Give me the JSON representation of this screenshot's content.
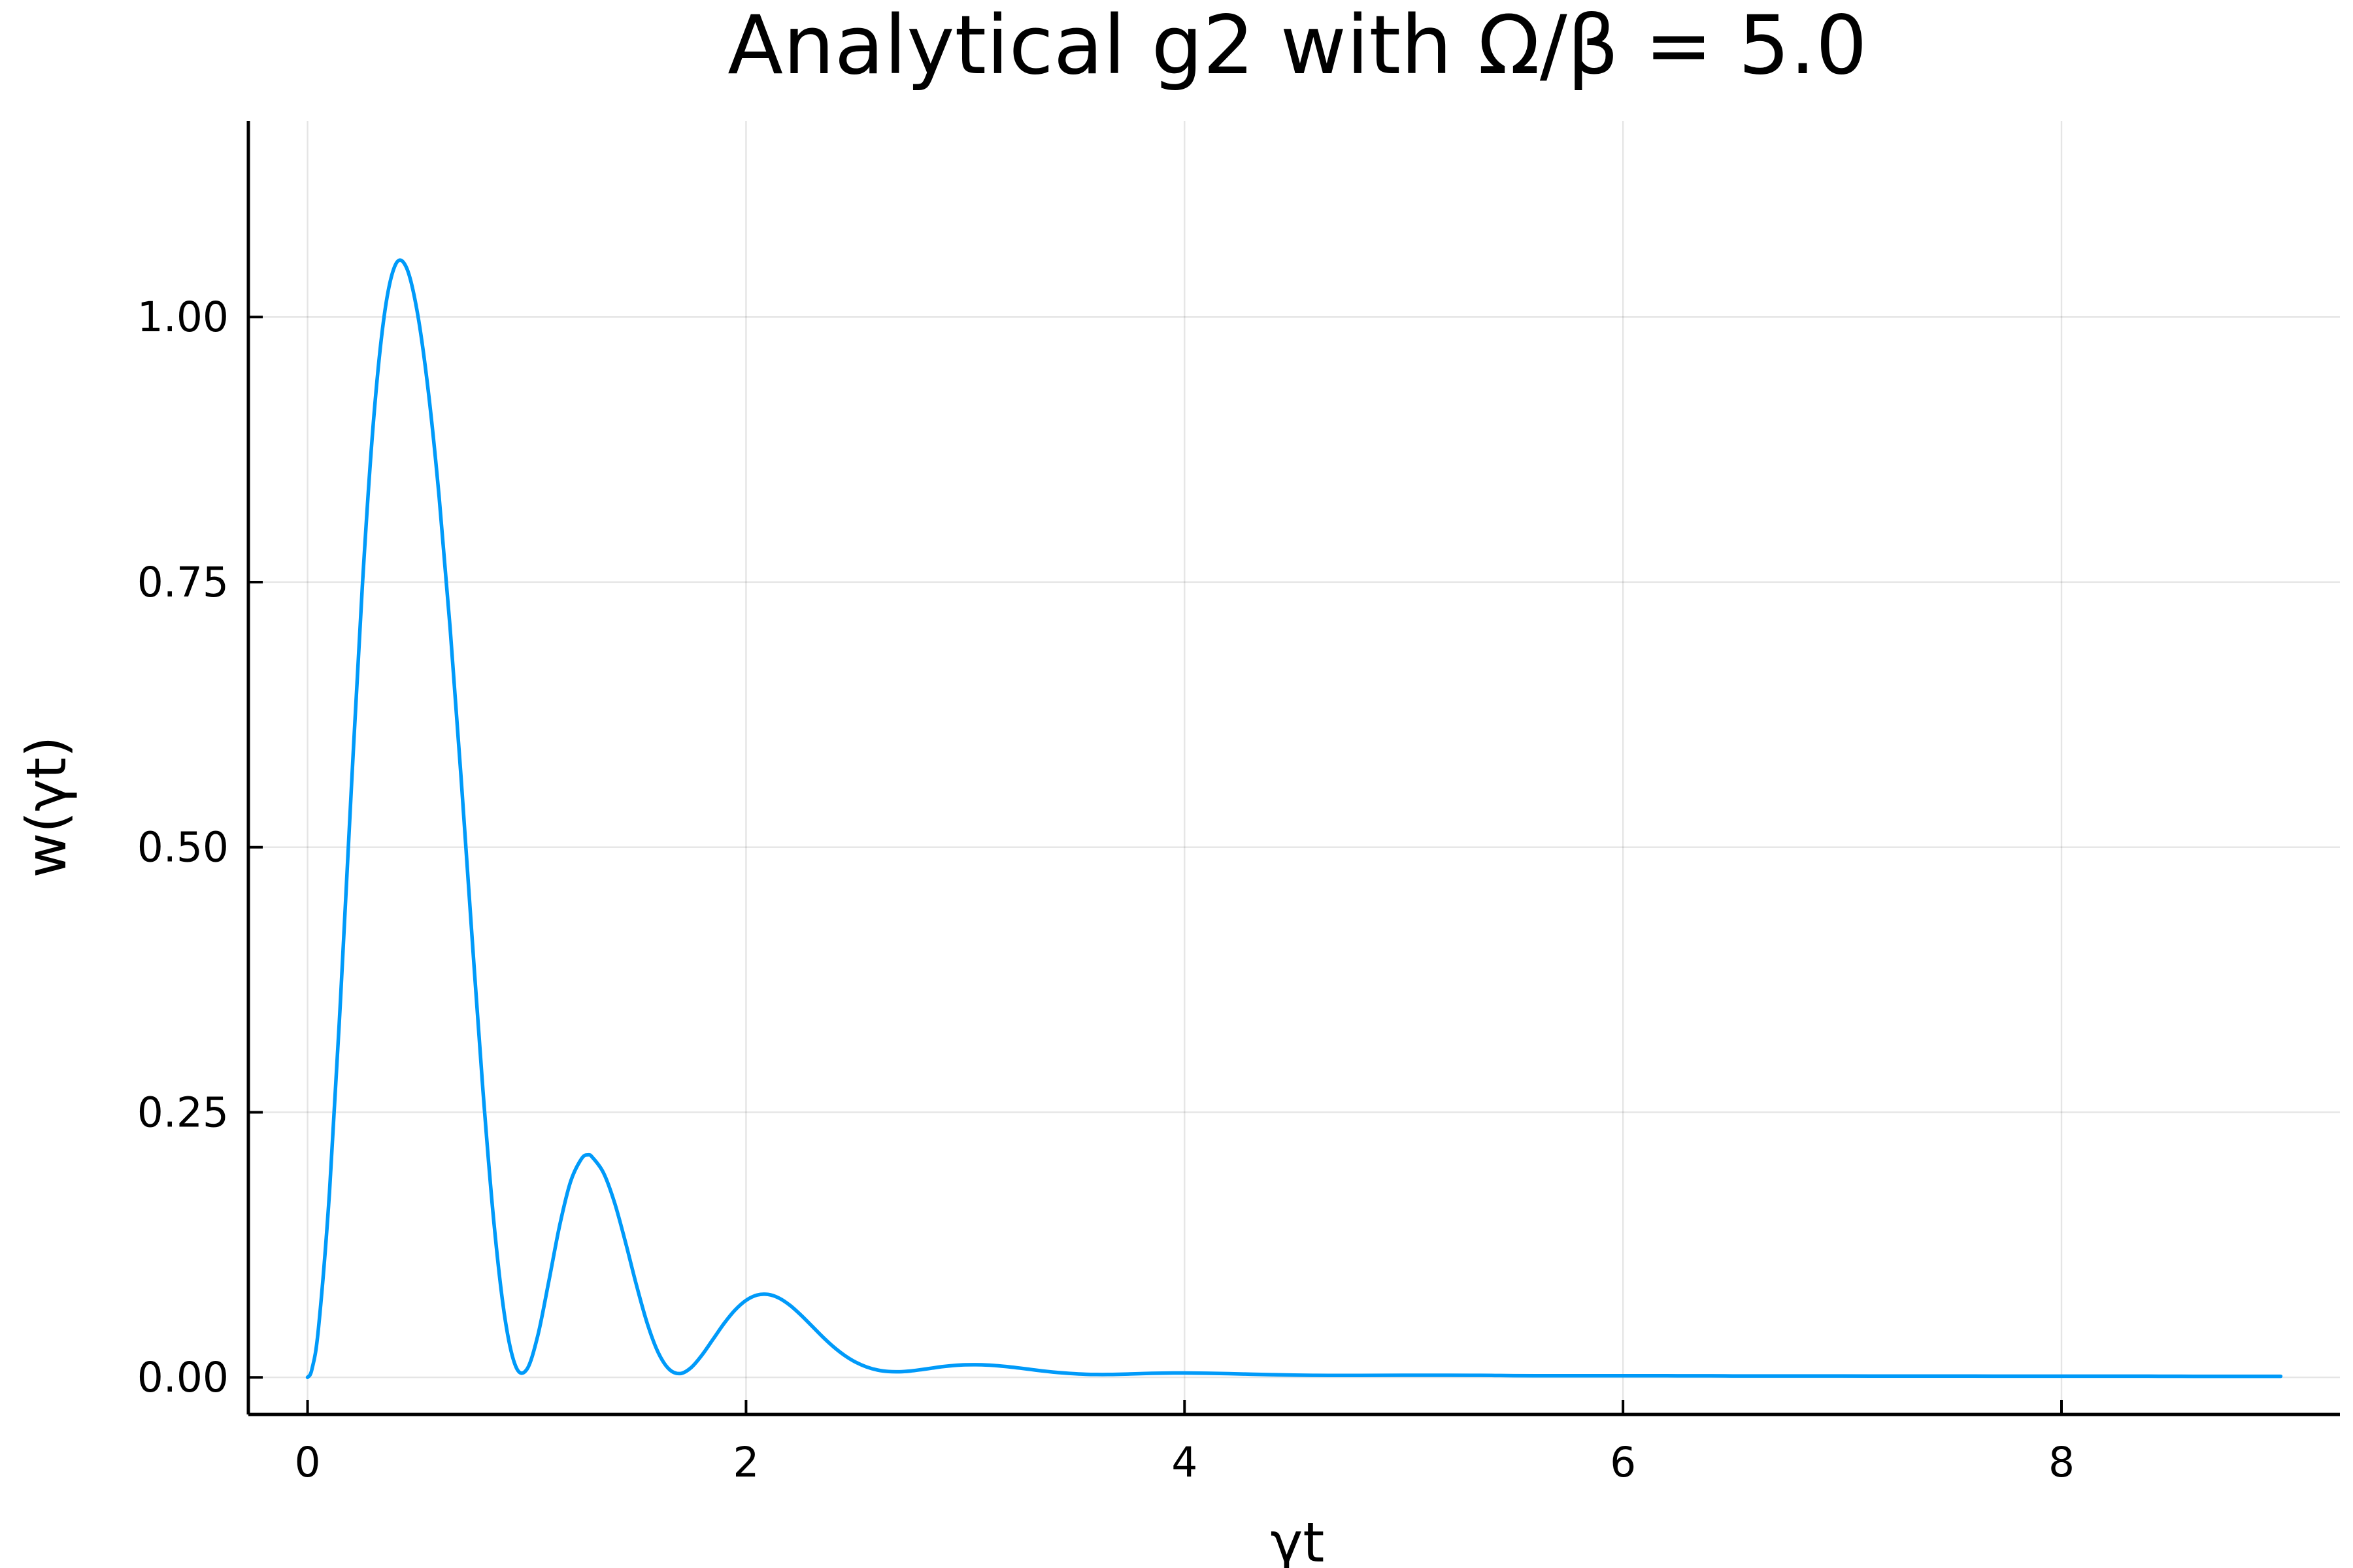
{
  "chart_data": {
    "type": "line",
    "title": "Analytical g2 with Ω/β = 5.0",
    "xlabel": "γt",
    "ylabel": "w(γt)",
    "xlim": [
      -0.27,
      9.27
    ],
    "ylim": [
      -0.035,
      1.185
    ],
    "grid": true,
    "legend": "none",
    "x_ticks": [
      {
        "value": 0,
        "label": "0"
      },
      {
        "value": 2,
        "label": "2"
      },
      {
        "value": 4,
        "label": "4"
      },
      {
        "value": 6,
        "label": "6"
      },
      {
        "value": 8,
        "label": "8"
      }
    ],
    "y_ticks": [
      {
        "value": 0.0,
        "label": "0.00"
      },
      {
        "value": 0.25,
        "label": "0.25"
      },
      {
        "value": 0.5,
        "label": "0.50"
      },
      {
        "value": 0.75,
        "label": "0.75"
      },
      {
        "value": 1.0,
        "label": "1.00"
      }
    ],
    "series": [
      {
        "color": "#009af9",
        "x": [
          0.0,
          0.02,
          0.05,
          0.1,
          0.15,
          0.2,
          0.25,
          0.3,
          0.35,
          0.4,
          0.45,
          0.5,
          0.55,
          0.6,
          0.65,
          0.7,
          0.75,
          0.8,
          0.85,
          0.9,
          0.95,
          1.0,
          1.05,
          1.1,
          1.15,
          1.2,
          1.25,
          1.28,
          1.3,
          1.35,
          1.4,
          1.45,
          1.5,
          1.55,
          1.6,
          1.65,
          1.7,
          1.75,
          1.8,
          1.85,
          1.9,
          1.95,
          2.0,
          2.05,
          2.1,
          2.15,
          2.2,
          2.25,
          2.3,
          2.35,
          2.4,
          2.45,
          2.5,
          2.55,
          2.6,
          2.65,
          2.7,
          2.75,
          2.8,
          2.85,
          2.9,
          2.95,
          3.0,
          3.05,
          3.1,
          3.15,
          3.2,
          3.25,
          3.3,
          3.35,
          3.4,
          3.45,
          3.5,
          3.55,
          3.6,
          3.65,
          3.7,
          3.75,
          3.8,
          3.85,
          3.9,
          3.95,
          4.0,
          4.1,
          4.2,
          4.3,
          4.4,
          4.5,
          4.6,
          4.7,
          4.8,
          4.9,
          5.0,
          5.1,
          5.2,
          5.3,
          5.4,
          5.5,
          5.6,
          5.7,
          5.8,
          5.9,
          6.0,
          6.1,
          6.2,
          6.3,
          6.4,
          6.5,
          6.6,
          6.7,
          6.8,
          6.9,
          7.0,
          7.2,
          7.4,
          7.6,
          7.8,
          8.0,
          8.2,
          8.4,
          8.6,
          8.8,
          9.0
        ],
        "y": [
          0.0,
          0.0077,
          0.0468,
          0.1746,
          0.3552,
          0.5566,
          0.7467,
          0.9001,
          1.0018,
          1.0489,
          1.0471,
          1.0052,
          0.9312,
          0.8305,
          0.7072,
          0.5662,
          0.4158,
          0.2704,
          0.1459,
          0.0562,
          0.0101,
          0.0075,
          0.0393,
          0.0902,
          0.1434,
          0.1848,
          0.2063,
          0.2098,
          0.2073,
          0.1928,
          0.1649,
          0.1275,
          0.0871,
          0.0505,
          0.0231,
          0.0075,
          0.0036,
          0.0093,
          0.0213,
          0.0361,
          0.0509,
          0.0635,
          0.0726,
          0.0776,
          0.0782,
          0.0748,
          0.068,
          0.0588,
          0.0485,
          0.0381,
          0.0286,
          0.0206,
          0.0143,
          0.0098,
          0.0069,
          0.0055,
          0.0053,
          0.006,
          0.0073,
          0.0088,
          0.0102,
          0.0112,
          0.0118,
          0.0119,
          0.0116,
          0.0109,
          0.0099,
          0.0087,
          0.0074,
          0.0061,
          0.005,
          0.0041,
          0.0034,
          0.0029,
          0.0027,
          0.0027,
          0.0029,
          0.0032,
          0.0035,
          0.0038,
          0.004,
          0.0041,
          0.0041,
          0.0039,
          0.0035,
          0.003,
          0.0025,
          0.0021,
          0.0019,
          0.0018,
          0.0018,
          0.0019,
          0.002,
          0.002,
          0.002,
          0.0019,
          0.0018,
          0.0016,
          0.0015,
          0.0015,
          0.0015,
          0.0015,
          0.0015,
          0.0015,
          0.0015,
          0.0014,
          0.0014,
          0.0013,
          0.0013,
          0.0013,
          0.0013,
          0.0013,
          0.0013,
          0.0012,
          0.0012,
          0.0012,
          0.0011,
          0.0011,
          0.0011,
          0.0011,
          0.001,
          0.001,
          0.001
        ]
      }
    ]
  }
}
